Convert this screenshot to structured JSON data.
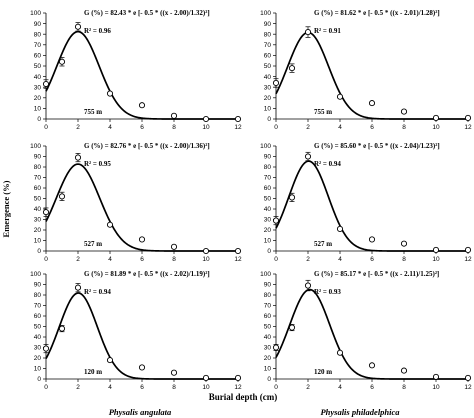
{
  "figure": {
    "ylabel": "Emergence (%)",
    "xlabel": "Burial depth (cm)",
    "columns": [
      "Physalis angulata",
      "Physalis philadelphica"
    ]
  },
  "chart_data": [
    {
      "type": "scatter",
      "species": "Physalis angulata",
      "site": "755 m",
      "equation": "G (%) = 82.43 * e [- 0.5 * ((x - 2.00)/1.32)²]",
      "r2": "R² = 0.96",
      "fit": {
        "a": 82.43,
        "x0": 2.0,
        "b": 1.32
      },
      "x": [
        0,
        1,
        2,
        4,
        6,
        8,
        10,
        12
      ],
      "y": [
        33,
        54,
        87,
        24,
        13,
        3,
        0,
        0
      ],
      "err": [
        4,
        4,
        4,
        1,
        1,
        1,
        0,
        0
      ],
      "xlim": [
        0,
        12
      ],
      "ylim": [
        0,
        100
      ],
      "xticks": [
        "0",
        "2",
        "4",
        "6",
        "8",
        "10",
        "12"
      ],
      "yticks": [
        "0",
        "10",
        "20",
        "30",
        "40",
        "50",
        "60",
        "70",
        "80",
        "90",
        "100"
      ]
    },
    {
      "type": "scatter",
      "species": "Physalis philadelphica",
      "site": "755 m",
      "equation": "G (%) = 81.62 * e [- 0.5 * ((x - 2.01)/1.28)²]",
      "r2": "R² = 0.91",
      "fit": {
        "a": 81.62,
        "x0": 2.01,
        "b": 1.28
      },
      "x": [
        0,
        1,
        2,
        4,
        6,
        8,
        10,
        12
      ],
      "y": [
        34,
        48,
        82,
        21,
        15,
        7,
        1,
        1
      ],
      "err": [
        4,
        4,
        5,
        1,
        1,
        1,
        0,
        0
      ],
      "xlim": [
        0,
        12
      ],
      "ylim": [
        0,
        100
      ],
      "xticks": [
        "0",
        "2",
        "4",
        "6",
        "8",
        "10",
        "12"
      ],
      "yticks": [
        "0",
        "10",
        "20",
        "30",
        "40",
        "50",
        "60",
        "70",
        "80",
        "90",
        "100"
      ]
    },
    {
      "type": "scatter",
      "species": "Physalis angulata",
      "site": "527 m",
      "equation": "G (%) = 82.76 * e [- 0.5 * ((x - 2.00)/1.36)²]",
      "r2": "R² = 0.95",
      "fit": {
        "a": 82.76,
        "x0": 2.0,
        "b": 1.36
      },
      "x": [
        0,
        1,
        2,
        4,
        6,
        8,
        10,
        12
      ],
      "y": [
        37,
        52,
        89,
        25,
        11,
        4,
        0,
        0
      ],
      "err": [
        4,
        4,
        4,
        1,
        1,
        1,
        0,
        0
      ],
      "xlim": [
        0,
        12
      ],
      "ylim": [
        0,
        100
      ],
      "xticks": [
        "0",
        "2",
        "4",
        "6",
        "8",
        "10",
        "12"
      ],
      "yticks": [
        "0",
        "10",
        "20",
        "30",
        "40",
        "50",
        "60",
        "70",
        "80",
        "90",
        "100"
      ]
    },
    {
      "type": "scatter",
      "species": "Physalis philadelphica",
      "site": "527 m",
      "equation": "G (%) = 85.60 * e [- 0.5 * ((x - 2.04)/1.23)²]",
      "r2": "R² = 0.94",
      "fit": {
        "a": 85.6,
        "x0": 2.04,
        "b": 1.23
      },
      "x": [
        0,
        1,
        2,
        4,
        6,
        8,
        10,
        12
      ],
      "y": [
        29,
        51,
        90,
        21,
        11,
        7,
        1,
        1
      ],
      "err": [
        4,
        4,
        4,
        1,
        1,
        1,
        0,
        0
      ],
      "xlim": [
        0,
        12
      ],
      "ylim": [
        0,
        100
      ],
      "xticks": [
        "0",
        "2",
        "4",
        "6",
        "8",
        "10",
        "12"
      ],
      "yticks": [
        "0",
        "10",
        "20",
        "30",
        "40",
        "50",
        "60",
        "70",
        "80",
        "90",
        "100"
      ]
    },
    {
      "type": "scatter",
      "species": "Physalis angulata",
      "site": "120 m",
      "equation": "G (%) = 81.89 * e [- 0.5 * ((x - 2.02)/1.19)²]",
      "r2": "R² = 0.94",
      "fit": {
        "a": 81.89,
        "x0": 2.02,
        "b": 1.19
      },
      "x": [
        0,
        1,
        2,
        4,
        6,
        8,
        10,
        12
      ],
      "y": [
        29,
        48,
        87,
        18,
        11,
        6,
        1,
        1
      ],
      "err": [
        4,
        3,
        4,
        1,
        1,
        1,
        0,
        0
      ],
      "xlim": [
        0,
        12
      ],
      "ylim": [
        0,
        100
      ],
      "xticks": [
        "0",
        "2",
        "4",
        "6",
        "8",
        "10",
        "12"
      ],
      "yticks": [
        "0",
        "10",
        "20",
        "30",
        "40",
        "50",
        "60",
        "70",
        "80",
        "90",
        "100"
      ]
    },
    {
      "type": "scatter",
      "species": "Physalis philadelphica",
      "site": "120 m",
      "equation": "G (%) = 85.17 * e [- 0.5 * ((x - 2.11)/1.25)²]",
      "r2": "R² = 0.93",
      "fit": {
        "a": 85.17,
        "x0": 2.11,
        "b": 1.25
      },
      "x": [
        0,
        1,
        2,
        4,
        6,
        8,
        10,
        12
      ],
      "y": [
        30,
        49,
        89,
        25,
        13,
        8,
        2,
        1
      ],
      "err": [
        3,
        3,
        5,
        1,
        1,
        1,
        0,
        0
      ],
      "xlim": [
        0,
        12
      ],
      "ylim": [
        0,
        100
      ],
      "xticks": [
        "0",
        "2",
        "4",
        "6",
        "8",
        "10",
        "12"
      ],
      "yticks": [
        "0",
        "10",
        "20",
        "30",
        "40",
        "50",
        "60",
        "70",
        "80",
        "90",
        "100"
      ]
    }
  ]
}
